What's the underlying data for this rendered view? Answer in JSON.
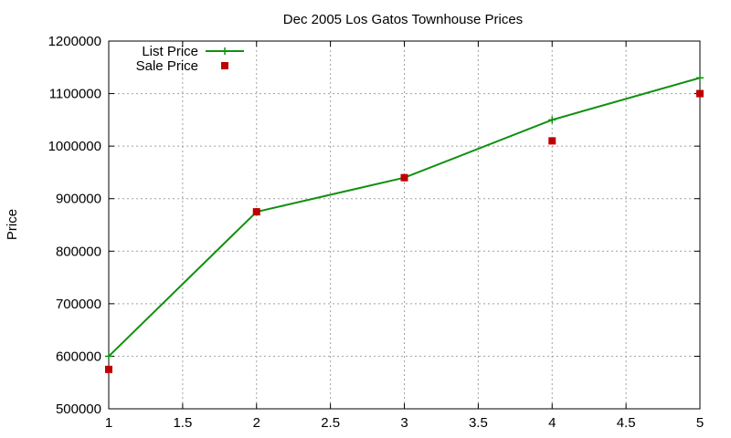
{
  "chart_data": {
    "type": "line",
    "title": "Dec 2005 Los Gatos Townhouse Prices",
    "xlabel": "",
    "ylabel": "Price",
    "xlim": [
      1,
      5
    ],
    "ylim": [
      500000,
      1200000
    ],
    "x_ticks": [
      1,
      1.5,
      2,
      2.5,
      3,
      3.5,
      4,
      4.5,
      5
    ],
    "x_tick_labels": [
      "1",
      "1.5",
      "2",
      "2.5",
      "3",
      "3.5",
      "4",
      "4.5",
      "5"
    ],
    "y_ticks": [
      500000,
      600000,
      700000,
      800000,
      900000,
      1000000,
      1100000,
      1200000
    ],
    "y_tick_labels": [
      "500000",
      "600000",
      "700000",
      "800000",
      "900000",
      "1000000",
      "1100000",
      "1200000"
    ],
    "grid": true,
    "legend_position": "top-left",
    "series": [
      {
        "name": "List Price",
        "style": "line+cross",
        "color": "#109010",
        "x": [
          1,
          2,
          3,
          4,
          5
        ],
        "y": [
          600000,
          875000,
          940000,
          1050000,
          1130000
        ]
      },
      {
        "name": "Sale Price",
        "style": "square-points",
        "color": "#c00000",
        "x": [
          1,
          2,
          3,
          4,
          5
        ],
        "y": [
          575000,
          875000,
          940000,
          1010000,
          1100000
        ]
      }
    ]
  }
}
